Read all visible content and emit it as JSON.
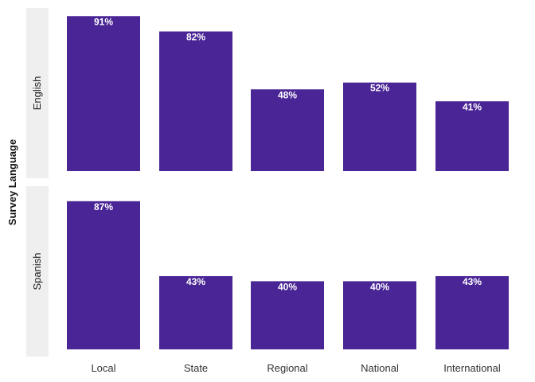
{
  "chart_data": {
    "type": "bar",
    "title": "",
    "xlabel": "",
    "ylabel": "Survey Language",
    "categories": [
      "Local",
      "State",
      "Regional",
      "National",
      "International"
    ],
    "ylim": [
      0,
      100
    ],
    "grid": false,
    "facets": [
      {
        "name": "English",
        "values": [
          91,
          82,
          48,
          52,
          41
        ],
        "labels": [
          "91%",
          "82%",
          "48%",
          "52%",
          "41%"
        ]
      },
      {
        "name": "Spanish",
        "values": [
          87,
          43,
          40,
          40,
          43
        ],
        "labels": [
          "87%",
          "43%",
          "40%",
          "40%",
          "43%"
        ]
      }
    ]
  },
  "colors": {
    "bar": "#4a2596",
    "facet_strip": "#efefef"
  }
}
